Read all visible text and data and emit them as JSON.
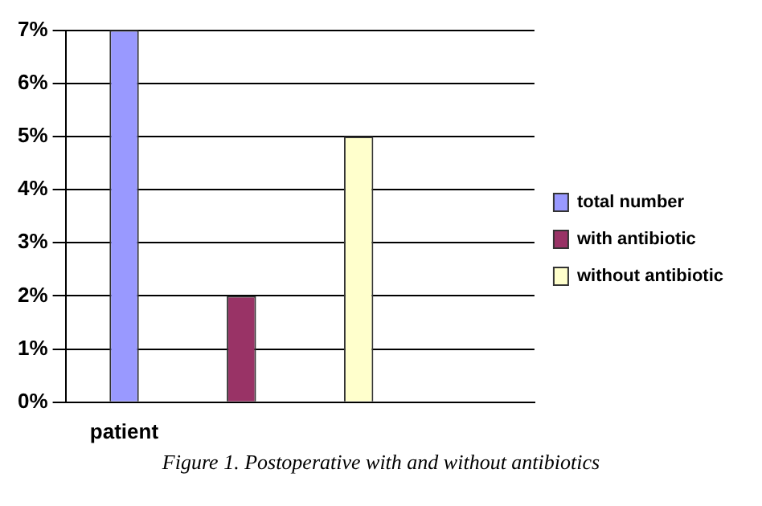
{
  "chart_data": {
    "type": "bar",
    "categories": [
      "patient",
      null,
      null,
      null
    ],
    "series": [
      {
        "name": "total number",
        "color": "#9999ff",
        "values": [
          7,
          null,
          null,
          null
        ]
      },
      {
        "name": "with antibiotic",
        "color": "#993366",
        "values": [
          null,
          2,
          null,
          null
        ]
      },
      {
        "name": "without antibiotic",
        "color": "#ffffcc",
        "values": [
          null,
          null,
          5,
          null
        ]
      }
    ],
    "ylim": [
      0,
      7
    ],
    "yticks": [
      {
        "value": 0,
        "label": "0%"
      },
      {
        "value": 1,
        "label": "1%"
      },
      {
        "value": 2,
        "label": "2%"
      },
      {
        "value": 3,
        "label": "3%"
      },
      {
        "value": 4,
        "label": "4%"
      },
      {
        "value": 5,
        "label": "5%"
      },
      {
        "value": 6,
        "label": "6%"
      },
      {
        "value": 7,
        "label": "7%"
      }
    ],
    "grid": "y",
    "legend": "right",
    "annotations": [
      "Figure 1. Postoperative with and without antibiotics"
    ]
  }
}
